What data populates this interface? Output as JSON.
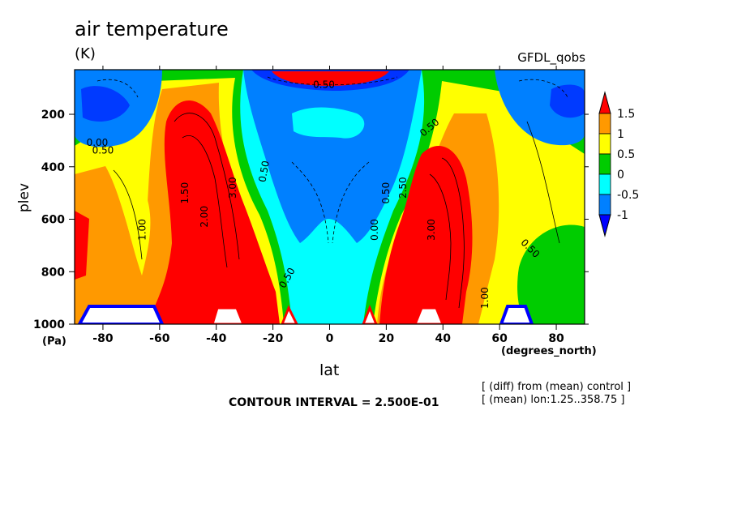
{
  "chart_data": {
    "type": "heatmap",
    "title": "air temperature",
    "units": "(K)",
    "model": "GFDL_qobs",
    "xlabel": "lat",
    "xunits": "(degrees_north)",
    "ylabel": "plev",
    "yunits": "(Pa)",
    "xlim": [
      -90,
      90
    ],
    "ylim": [
      1000,
      30
    ],
    "x_ticks": [
      -80,
      -60,
      -40,
      -20,
      0,
      20,
      40,
      60,
      80
    ],
    "y_ticks": [
      200,
      400,
      600,
      800,
      1000
    ],
    "contour_interval_text": "CONTOUR INTERVAL = 2.500E-01",
    "notes": [
      "[ (diff) from (mean) control ]",
      "[ (mean) lon:1.25..358.75 ]"
    ],
    "colorbar": {
      "labels": [
        "1.5",
        "1",
        "0.5",
        "0",
        "-0.5",
        "-1"
      ],
      "colors": [
        "#ff0000",
        "#ff9900",
        "#ffff00",
        "#00cc00",
        "#00ffff",
        "#0080ff",
        "#0000ff"
      ]
    },
    "contour_labels": [
      "0.00",
      "0.50",
      "1.00",
      "1.50",
      "2.00",
      "2.50",
      "3.00"
    ],
    "grid": false,
    "legend_position": "right"
  }
}
